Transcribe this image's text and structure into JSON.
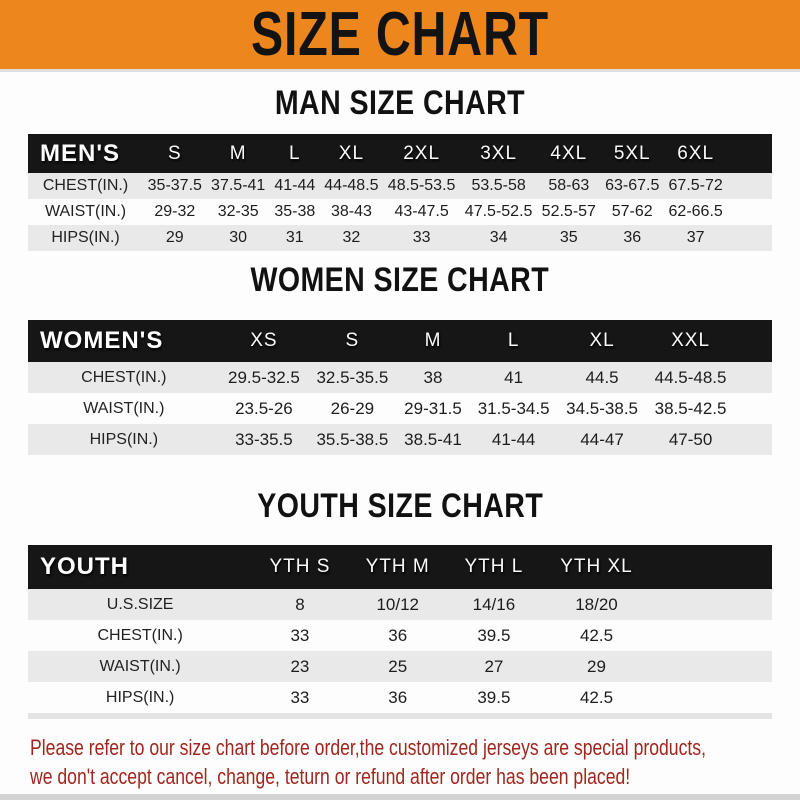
{
  "banner": {
    "title": "SIZE CHART"
  },
  "sections": [
    {
      "heading": "MAN SIZE CHART",
      "table": {
        "header": [
          "MEN'S",
          "S",
          "M",
          "L",
          "XL",
          "2XL",
          "3XL",
          "4XL",
          "5XL",
          "6XL"
        ],
        "rows": [
          [
            "CHEST(IN.)",
            "35-37.5",
            "37.5-41",
            "41-44",
            "44-48.5",
            "48.5-53.5",
            "53.5-58",
            "58-63",
            "63-67.5",
            "67.5-72"
          ],
          [
            "WAIST(IN.)",
            "29-32",
            "32-35",
            "35-38",
            "38-43",
            "43-47.5",
            "47.5-52.5",
            "52.5-57",
            "57-62",
            "62-66.5"
          ],
          [
            "HIPS(IN.)",
            "29",
            "30",
            "31",
            "32",
            "33",
            "34",
            "35",
            "36",
            "37"
          ]
        ]
      }
    },
    {
      "heading": "WOMEN SIZE CHART",
      "table": {
        "header": [
          "WOMEN'S",
          "XS",
          "S",
          "M",
          "L",
          "XL",
          "XXL"
        ],
        "rows": [
          [
            "CHEST(IN.)",
            "29.5-32.5",
            "32.5-35.5",
            "38",
            "41",
            "44.5",
            "44.5-48.5"
          ],
          [
            "WAIST(IN.)",
            "23.5-26",
            "26-29",
            "29-31.5",
            "31.5-34.5",
            "34.5-38.5",
            "38.5-42.5"
          ],
          [
            "HIPS(IN.)",
            "33-35.5",
            "35.5-38.5",
            "38.5-41",
            "41-44",
            "44-47",
            "47-50"
          ]
        ]
      }
    },
    {
      "heading": "YOUTH SIZE CHART",
      "table": {
        "header": [
          "YOUTH",
          "YTH S",
          "YTH M",
          "YTH L",
          "YTH XL"
        ],
        "rows": [
          [
            "U.S.SIZE",
            "8",
            "10/12",
            "14/16",
            "18/20"
          ],
          [
            "CHEST(IN.)",
            "33",
            "36",
            "39.5",
            "42.5"
          ],
          [
            "WAIST(IN.)",
            "23",
            "25",
            "27",
            "29"
          ],
          [
            "HIPS(IN.)",
            "33",
            "36",
            "39.5",
            "42.5"
          ]
        ]
      }
    }
  ],
  "footer": {
    "line1": "Please refer to our size chart before order,the customized jerseys are special products,",
    "line2": "we don't accept cancel, change, teturn or refund after order has been placed!"
  },
  "colors": {
    "banner-orange": "#ED861D",
    "bar-black": "#161616",
    "row-gray": "#E9E9E9",
    "footer-red": "#A1271E"
  }
}
